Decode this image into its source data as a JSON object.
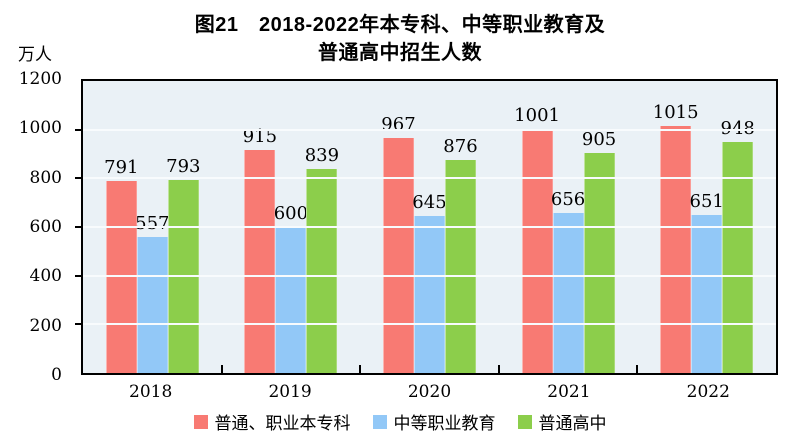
{
  "title": {
    "line1": "图21　2018-2022年本专科、中等职业教育及",
    "line2": "普通高中招生人数"
  },
  "y_axis_unit": "万人",
  "chart_data": {
    "type": "bar",
    "title": "图21 2018-2022年本专科、中等职业教育及普通高中招生人数",
    "categories": [
      "2018",
      "2019",
      "2020",
      "2021",
      "2022"
    ],
    "series": [
      {
        "name": "普通、职业本专科",
        "color": "#F87A73",
        "values": [
          791,
          915,
          967,
          1001,
          1015
        ]
      },
      {
        "name": "中等职业教育",
        "color": "#92C8F7",
        "values": [
          557,
          600,
          645,
          656,
          651
        ]
      },
      {
        "name": "普通高中",
        "color": "#8CCE4B",
        "values": [
          793,
          839,
          876,
          905,
          948
        ]
      }
    ],
    "xlabel": "",
    "ylabel": "万人",
    "ylim": [
      0,
      1200
    ],
    "ytick_step": 200,
    "yticks": [
      0,
      200,
      400,
      600,
      800,
      1000,
      1200
    ],
    "grid": true,
    "gridline_color": "#f8fbfd",
    "plot_background": "#EAF1F6",
    "legend_position": "bottom"
  }
}
